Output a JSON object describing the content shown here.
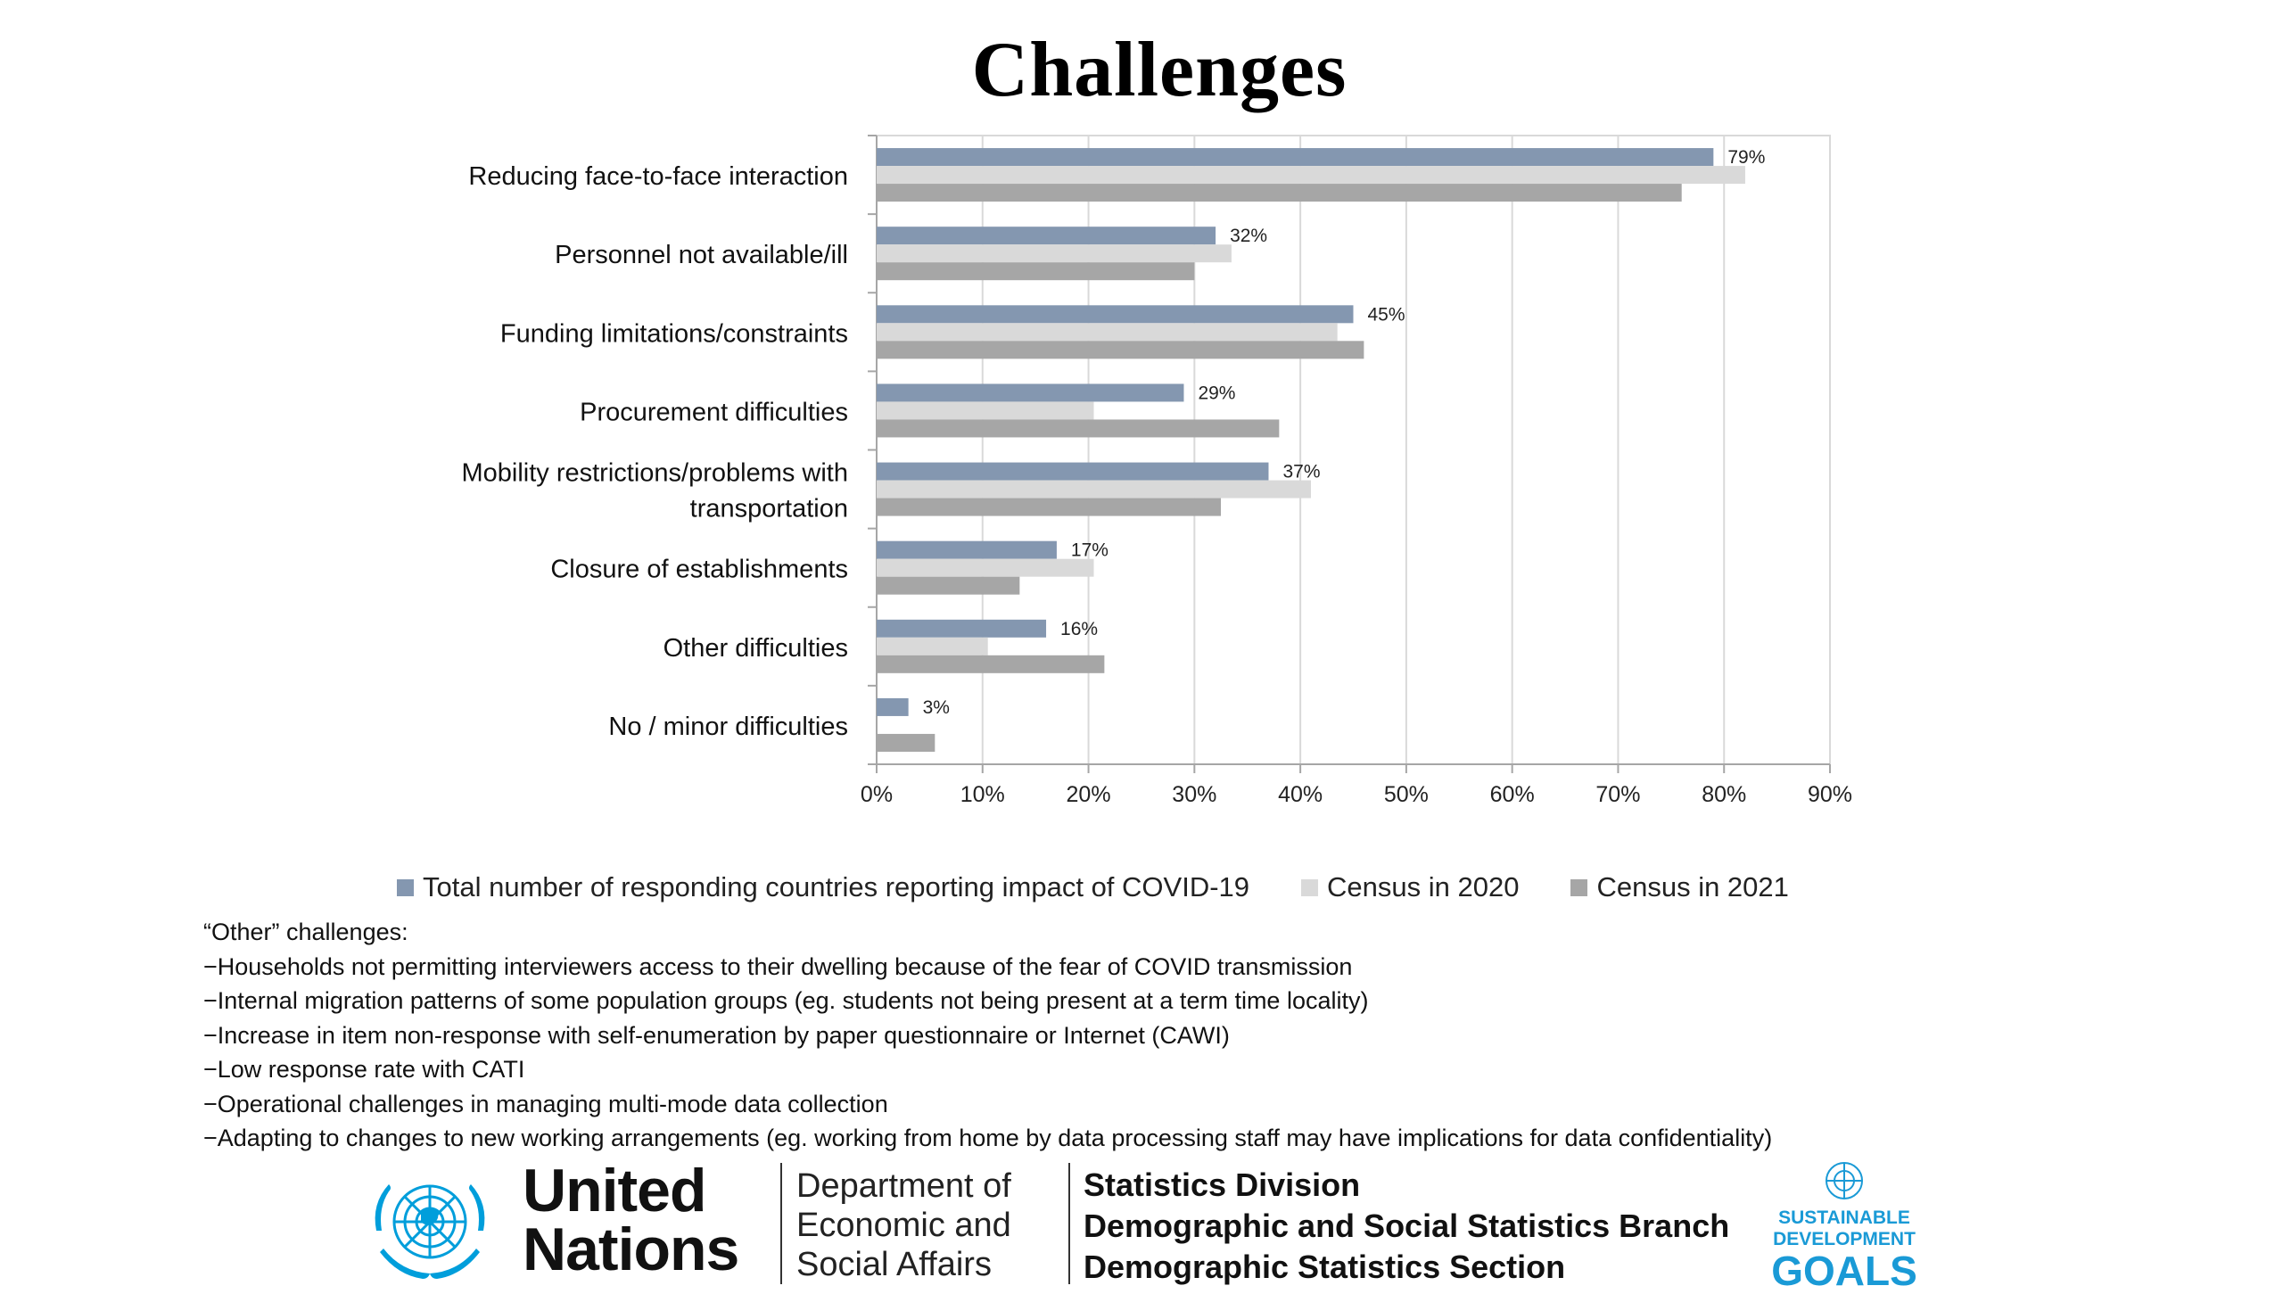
{
  "title": "Challenges",
  "chart_data": {
    "type": "bar",
    "orientation": "horizontal",
    "categories": [
      [
        "Reducing face-to-face interaction"
      ],
      [
        "Personnel not available/ill"
      ],
      [
        "Funding limitations/constraints"
      ],
      [
        "Procurement difficulties"
      ],
      [
        "Mobility restrictions/problems with",
        "transportation"
      ],
      [
        "Closure of establishments"
      ],
      [
        "Other difficulties"
      ],
      [
        "No / minor difficulties"
      ]
    ],
    "series": [
      {
        "name": "Total number of responding countries reporting impact of COVID-19",
        "color": "#8497b0",
        "values": [
          79,
          32,
          45,
          29,
          37,
          17,
          16,
          3
        ],
        "data_labels": [
          "79%",
          "32%",
          "45%",
          "29%",
          "37%",
          "17%",
          "16%",
          "3%"
        ]
      },
      {
        "name": "Census in 2020",
        "color": "#d9d9d9",
        "values": [
          82,
          33.5,
          43.5,
          20.5,
          41,
          20.5,
          10.5,
          0
        ]
      },
      {
        "name": "Census in 2021",
        "color": "#a6a6a6",
        "values": [
          76,
          30,
          46,
          38,
          32.5,
          13.5,
          21.5,
          5.5
        ]
      }
    ],
    "xlim": [
      0,
      90
    ],
    "xticks": [
      0,
      10,
      20,
      30,
      40,
      50,
      60,
      70,
      80,
      90
    ],
    "xtick_labels": [
      "0%",
      "10%",
      "20%",
      "30%",
      "40%",
      "50%",
      "60%",
      "70%",
      "80%",
      "90%"
    ],
    "grid": "vertical",
    "legend_position": "bottom"
  },
  "notes": {
    "heading": "“Other” challenges:",
    "items": [
      "−Households not permitting interviewers access to their dwelling because of the fear of COVID transmission",
      "−Internal migration patterns of some population groups (eg. students not being present at a term time locality)",
      "−Increase in item non-response with self-enumeration by paper questionnaire or Internet (CAWI)",
      "−Low response rate with CATI",
      "−Operational challenges in managing multi-mode data collection",
      "−Adapting to changes to new working arrangements (eg. working from home by data processing staff  may have implications for data confidentiality)"
    ]
  },
  "footer": {
    "un_line1": "United",
    "un_line2": "Nations",
    "desa_line1": "Department of",
    "desa_line2": "Economic and",
    "desa_line3": "Social Affairs",
    "stats_line1": "Statistics Division",
    "stats_line2": "Demographic and Social Statistics Branch",
    "stats_line3": "Demographic Statistics Section",
    "sdg_line1": "SUSTAINABLE",
    "sdg_line2": "DEVELOPMENT",
    "sdg_line3": "GOALS"
  }
}
